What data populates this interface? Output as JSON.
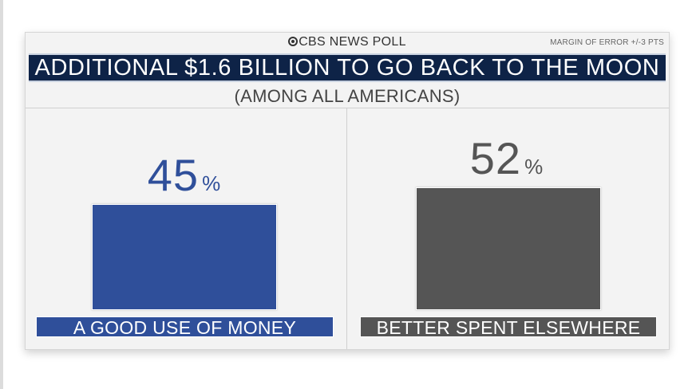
{
  "header": {
    "brand": "CBS NEWS POLL",
    "margin_of_error": "MARGIN OF ERROR +/-3 PTS",
    "title": "ADDITIONAL $1.6 BILLION TO GO BACK TO THE MOON",
    "subtitle": "(AMONG ALL AMERICANS)"
  },
  "colors": {
    "title_bar": "#0e2347",
    "good_use": "#2f4f9a",
    "spent_elsewhere": "#555555"
  },
  "chart_data": {
    "type": "bar",
    "title": "ADDITIONAL $1.6 BILLION TO GO BACK TO THE MOON",
    "subtitle": "(AMONG ALL AMERICANS)",
    "categories": [
      "A GOOD USE OF MONEY",
      "BETTER SPENT ELSEWHERE"
    ],
    "values": [
      45,
      52
    ],
    "unit": "%",
    "ylim": [
      0,
      100
    ],
    "grid": false,
    "colors": [
      "#2f4f9a",
      "#555555"
    ]
  }
}
